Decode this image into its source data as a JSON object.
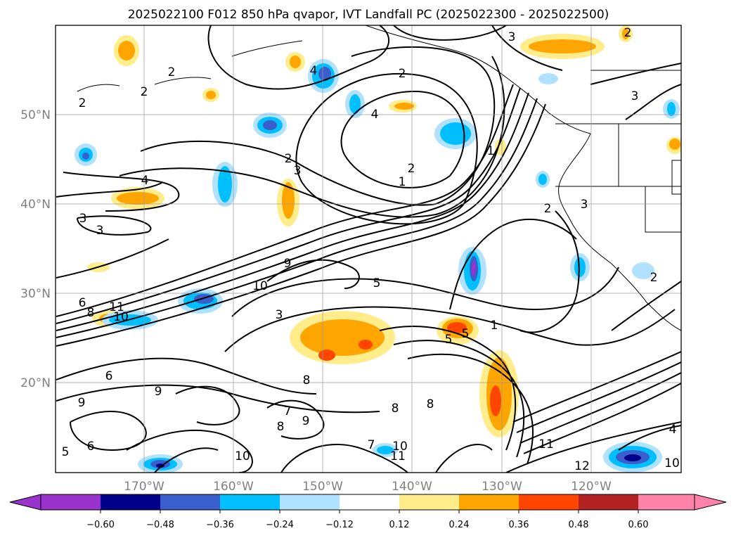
{
  "figure": {
    "title": "2025022100 F012 850 hPa qvapor, IVT Landfall PC (2025022300 - 2025022500)"
  },
  "axes": {
    "lat_labels": [
      "50°N",
      "40°N",
      "30°N",
      "20°N"
    ],
    "lon_labels": [
      "170°W",
      "160°W",
      "150°W",
      "140°W",
      "130°W",
      "120°W"
    ]
  },
  "colorbar": {
    "tick_labels": [
      "−0.60",
      "−0.48",
      "−0.36",
      "−0.24",
      "−0.12",
      "0.12",
      "0.24",
      "0.36",
      "0.48",
      "0.60"
    ],
    "colors": [
      "#9a32cd",
      "#00008b",
      "#3a5fcd",
      "#00bfff",
      "#b0e2ff",
      "#ffffff",
      "#ffec8b",
      "#ffa500",
      "#ff4500",
      "#b22222",
      "#ff82ab"
    ]
  },
  "contour_labels": [
    "2",
    "2",
    "2",
    "4",
    "2",
    "4",
    "3",
    "3",
    "4",
    "3",
    "2",
    "1",
    "2",
    "1",
    "2",
    "3",
    "3",
    "6",
    "8",
    "10",
    "11",
    "9",
    "10",
    "5",
    "3",
    "5",
    "1",
    "5",
    "2",
    "3",
    "2",
    "9",
    "8",
    "8",
    "6",
    "9",
    "7",
    "8",
    "8",
    "9",
    "7",
    "10",
    "11",
    "10",
    "11",
    "12",
    "10",
    "4",
    "6",
    "5"
  ],
  "colors": {
    "contour": "#000000",
    "coast": "#000000",
    "grid": "#aaaaaa"
  }
}
